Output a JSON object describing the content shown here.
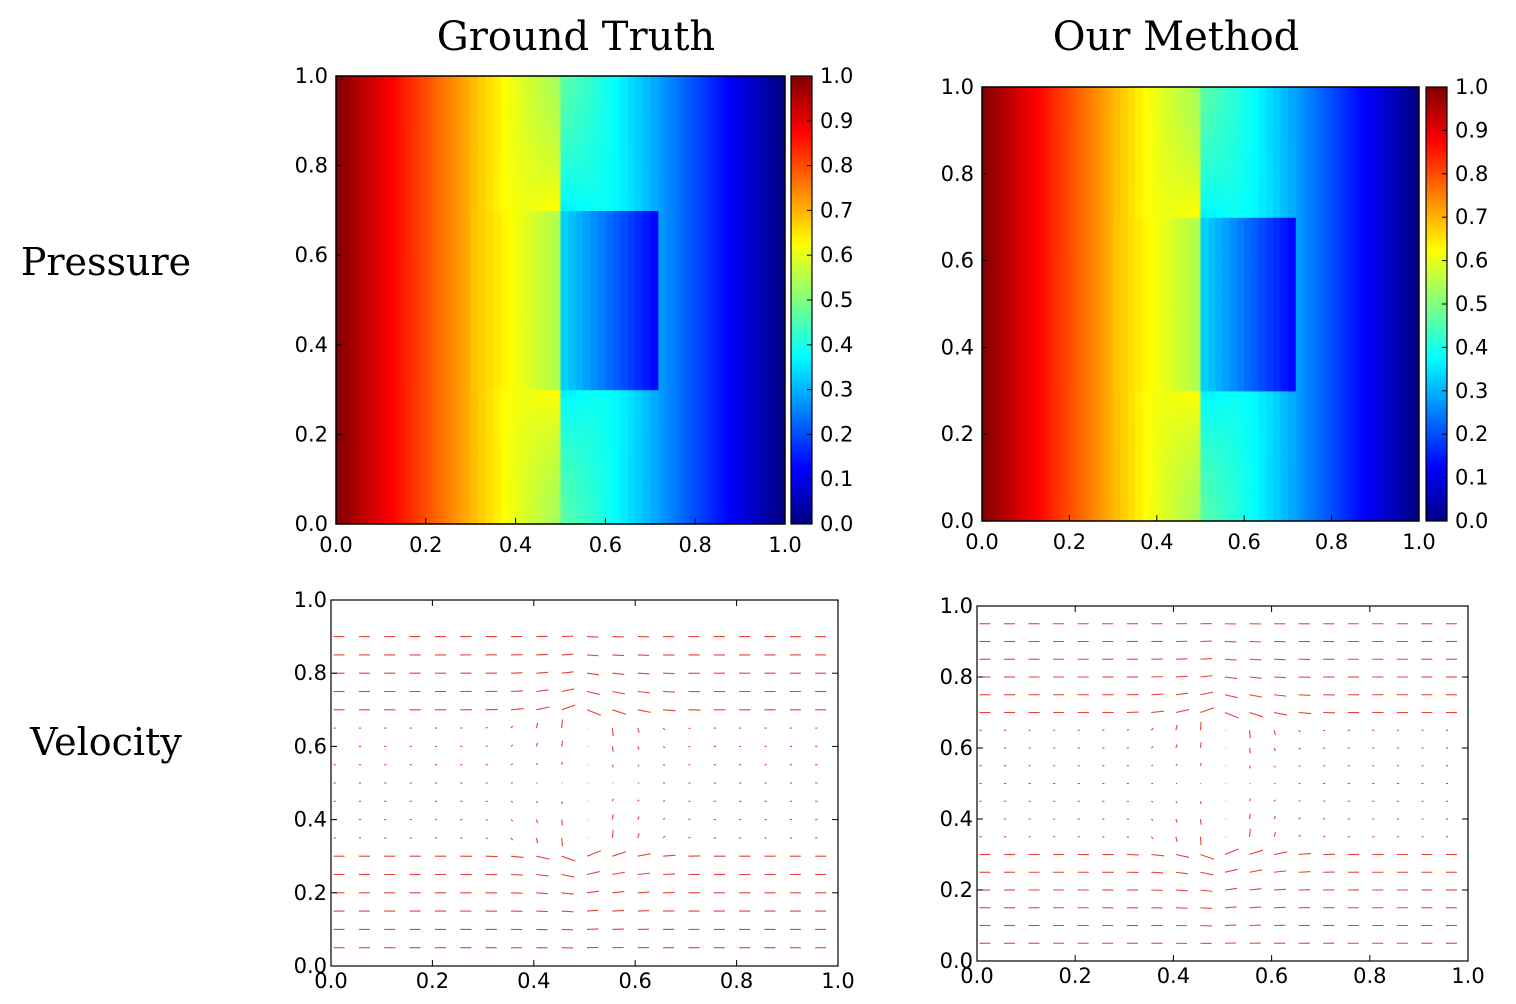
{
  "figure": {
    "columns": [
      "Ground Truth",
      "Our Method"
    ],
    "rows": [
      "Pressure",
      "Velocity"
    ]
  },
  "chart_data": [
    {
      "type": "heatmap",
      "title": "Ground Truth",
      "row": "Pressure",
      "x": [
        0.0,
        0.2,
        0.4,
        0.6,
        0.8,
        1.0
      ],
      "xlim": [
        0,
        1
      ],
      "ylim": [
        0,
        1
      ],
      "xticks": [
        "0.0",
        "0.2",
        "0.4",
        "0.6",
        "0.8",
        "1.0"
      ],
      "yticks": [
        "0.0",
        "0.2",
        "0.4",
        "0.6",
        "0.8",
        "1.0"
      ],
      "colorbar": {
        "ticks": [
          "0.0",
          "0.1",
          "0.2",
          "0.3",
          "0.4",
          "0.5",
          "0.6",
          "0.7",
          "0.8",
          "0.9",
          "1.0"
        ],
        "range": [
          0,
          1
        ],
        "colormap": "jet"
      },
      "values_along_x": [
        1.0,
        0.86,
        0.74,
        0.6,
        0.44,
        0.26,
        0.12,
        0.0
      ],
      "obstacle": {
        "x": 0.5,
        "y": [
          0.3,
          0.7
        ]
      }
    },
    {
      "type": "heatmap",
      "title": "Our Method",
      "row": "Pressure",
      "xlim": [
        0,
        1
      ],
      "ylim": [
        0,
        1
      ],
      "xticks": [
        "0.0",
        "0.2",
        "0.4",
        "0.6",
        "0.8",
        "1.0"
      ],
      "yticks": [
        "0.0",
        "0.2",
        "0.4",
        "0.6",
        "0.8",
        "1.0"
      ],
      "colorbar": {
        "ticks": [
          "0.0",
          "0.1",
          "0.2",
          "0.3",
          "0.4",
          "0.5",
          "0.6",
          "0.7",
          "0.8",
          "0.9",
          "1.0"
        ],
        "range": [
          0,
          1
        ],
        "colormap": "jet"
      },
      "values_along_x": [
        1.0,
        0.86,
        0.74,
        0.6,
        0.44,
        0.26,
        0.12,
        0.0
      ],
      "obstacle": {
        "x": 0.5,
        "y": [
          0.3,
          0.7
        ]
      }
    },
    {
      "type": "quiver",
      "title": "Ground Truth",
      "row": "Velocity",
      "xlim": [
        0,
        1
      ],
      "ylim": [
        0,
        1
      ],
      "xticks": [
        "0.0",
        "0.2",
        "0.4",
        "0.6",
        "0.8",
        "1.0"
      ],
      "yticks": [
        "0.0",
        "0.2",
        "0.4",
        "0.6",
        "0.8",
        "1.0"
      ],
      "grid": {
        "nx": 20,
        "ny": 18,
        "x0": 0.0,
        "dx": 0.05,
        "y0": 0.05,
        "dy": 0.05
      },
      "obstacle": {
        "x": 0.5,
        "y": [
          0.3,
          0.7
        ]
      },
      "arrow_color": "#e8413a"
    },
    {
      "type": "quiver",
      "title": "Our Method",
      "row": "Velocity",
      "xlim": [
        0,
        1
      ],
      "ylim": [
        0,
        1
      ],
      "xticks": [
        "0.0",
        "0.2",
        "0.4",
        "0.6",
        "0.8",
        "1.0"
      ],
      "yticks": [
        "0.0",
        "0.2",
        "0.4",
        "0.6",
        "0.8",
        "1.0"
      ],
      "grid": {
        "nx": 20,
        "ny": 19,
        "x0": 0.0,
        "dx": 0.05,
        "y0": 0.05,
        "dy": 0.05
      },
      "obstacle": {
        "x": 0.5,
        "y": [
          0.3,
          0.7
        ]
      },
      "arrow_color": "#e8413a"
    }
  ]
}
